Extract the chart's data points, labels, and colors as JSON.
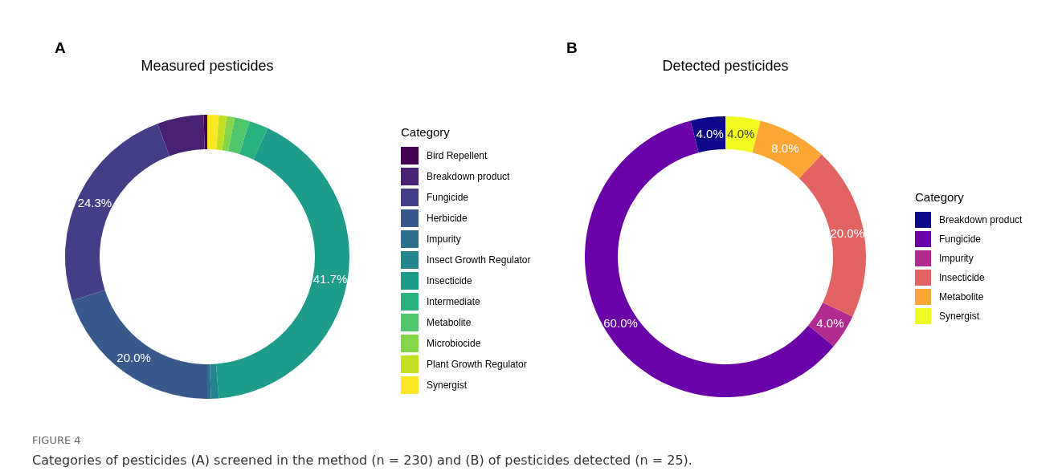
{
  "chart_data": [
    {
      "type": "donut",
      "title": "Measured pesticides",
      "legend_title": "Category",
      "legend": "right",
      "annotations": [
        "A",
        "FIGURE 4",
        "Categories of pesticides (A) screened in the method (n = 230) and (B) of pesticides detected (n = 25)."
      ],
      "categories": [
        "Bird Repellent",
        "Breakdown product",
        "Fungicide",
        "Herbicide",
        "Impurity",
        "Insect Growth Regulator",
        "Insecticide",
        "Intermediate",
        "Metabolite",
        "Microbiocide",
        "Plant Growth Regulator",
        "Synergist"
      ],
      "values": [
        0.4,
        5.3,
        24.3,
        20.0,
        0.4,
        0.9,
        41.7,
        2.2,
        1.7,
        0.9,
        0.9,
        1.3
      ],
      "colors": [
        "#440154",
        "#482173",
        "#433e85",
        "#38598c",
        "#2d708e",
        "#25858e",
        "#1e9b8a",
        "#2bb07f",
        "#51c56a",
        "#85d54a",
        "#c2df23",
        "#fde725"
      ],
      "value_labels": [
        null,
        null,
        "24.3%",
        "20.0%",
        null,
        null,
        "41.7%",
        null,
        null,
        null,
        null,
        null
      ]
    },
    {
      "type": "donut",
      "title": "Detected pesticides",
      "legend_title": "Category",
      "legend": "right",
      "annotations": [
        "B"
      ],
      "categories": [
        "Breakdown product",
        "Fungicide",
        "Impurity",
        "Insecticide",
        "Metabolite",
        "Synergist"
      ],
      "values": [
        4.0,
        60.0,
        4.0,
        20.0,
        8.0,
        4.0
      ],
      "colors": [
        "#0d0887",
        "#6a00a8",
        "#b12a90",
        "#e16462",
        "#fca636",
        "#f0f921"
      ],
      "value_labels": [
        "4.0%",
        "60.0%",
        "4.0%",
        "20.0%",
        "8.0%",
        "4.0%"
      ]
    }
  ]
}
